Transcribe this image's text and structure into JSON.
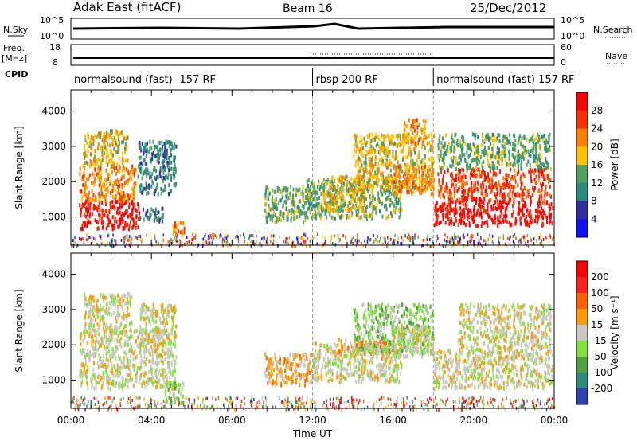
{
  "header": {
    "station": "Adak East (fitACF)",
    "beam": "Beam 16",
    "date": "25/Dec/2012"
  },
  "top_panels": {
    "nsky_label": "N.Sky",
    "nsky_ticks": [
      "10^5",
      "10^0"
    ],
    "nsearch_label": "N.Search",
    "nsearch_ticks": [
      "10^5",
      "10^0"
    ],
    "freq_label": "Freq.",
    "freq_unit": "[MHz]",
    "freq_ticks": [
      "18",
      "8"
    ],
    "nave_label": "Nave",
    "nave_ticks": [
      "60",
      "0"
    ],
    "cpid_label": "CPID"
  },
  "cpid_segments": [
    {
      "start": 0,
      "end": 12,
      "text": "normalsound (fast) -157 RF"
    },
    {
      "start": 12,
      "end": 18,
      "text": "rbsp 200 RF"
    },
    {
      "start": 18,
      "end": 24,
      "text": "normalsound (fast) 157 RF"
    }
  ],
  "chart_data": [
    {
      "type": "heatmap",
      "panel": "power",
      "ylabel": "Slant Range [km]",
      "yticks": [
        "1000",
        "2000",
        "3000",
        "4000"
      ],
      "ylim": [
        200,
        4600
      ],
      "xlim": [
        0,
        24
      ],
      "colorbar_label": "Power [dB]",
      "colorbar_ticks": [
        "4",
        "8",
        "12",
        "16",
        "20",
        "24",
        "28"
      ],
      "colors": [
        "#1010ff",
        "#3030a0",
        "#2c8c7c",
        "#50a060",
        "#ffc000",
        "#ff8000",
        "#ff3000",
        "#ff0000"
      ],
      "patches": [
        {
          "t0": 0.4,
          "t1": 3.4,
          "r0": 700,
          "r1": 1500,
          "level": 7
        },
        {
          "t0": 0.4,
          "t1": 3.2,
          "r0": 1500,
          "r1": 2500,
          "level": 5
        },
        {
          "t0": 0.6,
          "t1": 2.8,
          "r0": 2500,
          "r1": 3500,
          "level": 4
        },
        {
          "t0": 3.3,
          "t1": 5.2,
          "r0": 1700,
          "r1": 3200,
          "level": 2
        },
        {
          "t0": 3.4,
          "t1": 4.6,
          "r0": 900,
          "r1": 1300,
          "level": 2
        },
        {
          "t0": 5.0,
          "t1": 5.6,
          "r0": 400,
          "r1": 900,
          "level": 5
        },
        {
          "t0": 9.6,
          "t1": 11.6,
          "r0": 900,
          "r1": 1900,
          "level": 3
        },
        {
          "t0": 11.6,
          "t1": 16.4,
          "r0": 1000,
          "r1": 2100,
          "level": 3
        },
        {
          "t0": 12.4,
          "t1": 14.6,
          "r0": 1200,
          "r1": 2200,
          "level": 4
        },
        {
          "t0": 14.0,
          "t1": 18.0,
          "r0": 1800,
          "r1": 3400,
          "level": 4
        },
        {
          "t0": 16.0,
          "t1": 18.0,
          "r0": 1700,
          "r1": 2500,
          "level": 5
        },
        {
          "t0": 16.5,
          "t1": 17.6,
          "r0": 3100,
          "r1": 3800,
          "level": 5
        },
        {
          "t0": 18.0,
          "t1": 23.9,
          "r0": 800,
          "r1": 1500,
          "level": 7
        },
        {
          "t0": 18.2,
          "t1": 23.8,
          "r0": 1500,
          "r1": 2400,
          "level": 6
        },
        {
          "t0": 18.2,
          "t1": 23.8,
          "r0": 2400,
          "r1": 3400,
          "level": 3
        }
      ]
    },
    {
      "type": "heatmap",
      "panel": "velocity",
      "ylabel": "Slant Range [km]",
      "yticks": [
        "1000",
        "2000",
        "3000",
        "4000"
      ],
      "ylim": [
        200,
        4600
      ],
      "xlim": [
        0,
        24
      ],
      "xticks": [
        "00:00",
        "04:00",
        "08:00",
        "12:00",
        "16:00",
        "20:00",
        "00:00"
      ],
      "xlabel": "Time UT",
      "colorbar_label": "Velocity [m s⁻¹]",
      "colorbar_ticks": [
        "200",
        "100",
        "50",
        "15",
        "-15",
        "-50",
        "-100",
        "-200"
      ],
      "colors": [
        "#3040b0",
        "#2c8c7c",
        "#50a040",
        "#80e040",
        "#c8c8c0",
        "#ff9a00",
        "#ff6000",
        "#ff2020",
        "#ff0000"
      ],
      "patches": [
        {
          "t0": 0.4,
          "t1": 5.2,
          "r0": 800,
          "r1": 2500,
          "level": 4
        },
        {
          "t0": 0.6,
          "t1": 3.0,
          "r0": 2500,
          "r1": 3500,
          "level": 4
        },
        {
          "t0": 3.4,
          "t1": 5.2,
          "r0": 2000,
          "r1": 3200,
          "level": 4
        },
        {
          "t0": 4.6,
          "t1": 5.6,
          "r0": 400,
          "r1": 1000,
          "level": 3
        },
        {
          "t0": 9.6,
          "t1": 12.0,
          "r0": 900,
          "r1": 1800,
          "level": 5
        },
        {
          "t0": 12.0,
          "t1": 16.4,
          "r0": 1000,
          "r1": 2100,
          "level": 4
        },
        {
          "t0": 13.2,
          "t1": 16.0,
          "r0": 1800,
          "r1": 2200,
          "level": 5
        },
        {
          "t0": 14.0,
          "t1": 18.0,
          "r0": 1800,
          "r1": 3200,
          "level": 3
        },
        {
          "t0": 16.0,
          "t1": 18.0,
          "r0": 1700,
          "r1": 2600,
          "level": 4
        },
        {
          "t0": 18.0,
          "t1": 23.9,
          "r0": 800,
          "r1": 1900,
          "level": 4
        },
        {
          "t0": 19.2,
          "t1": 23.8,
          "r0": 1900,
          "r1": 3200,
          "level": 4
        }
      ]
    }
  ]
}
